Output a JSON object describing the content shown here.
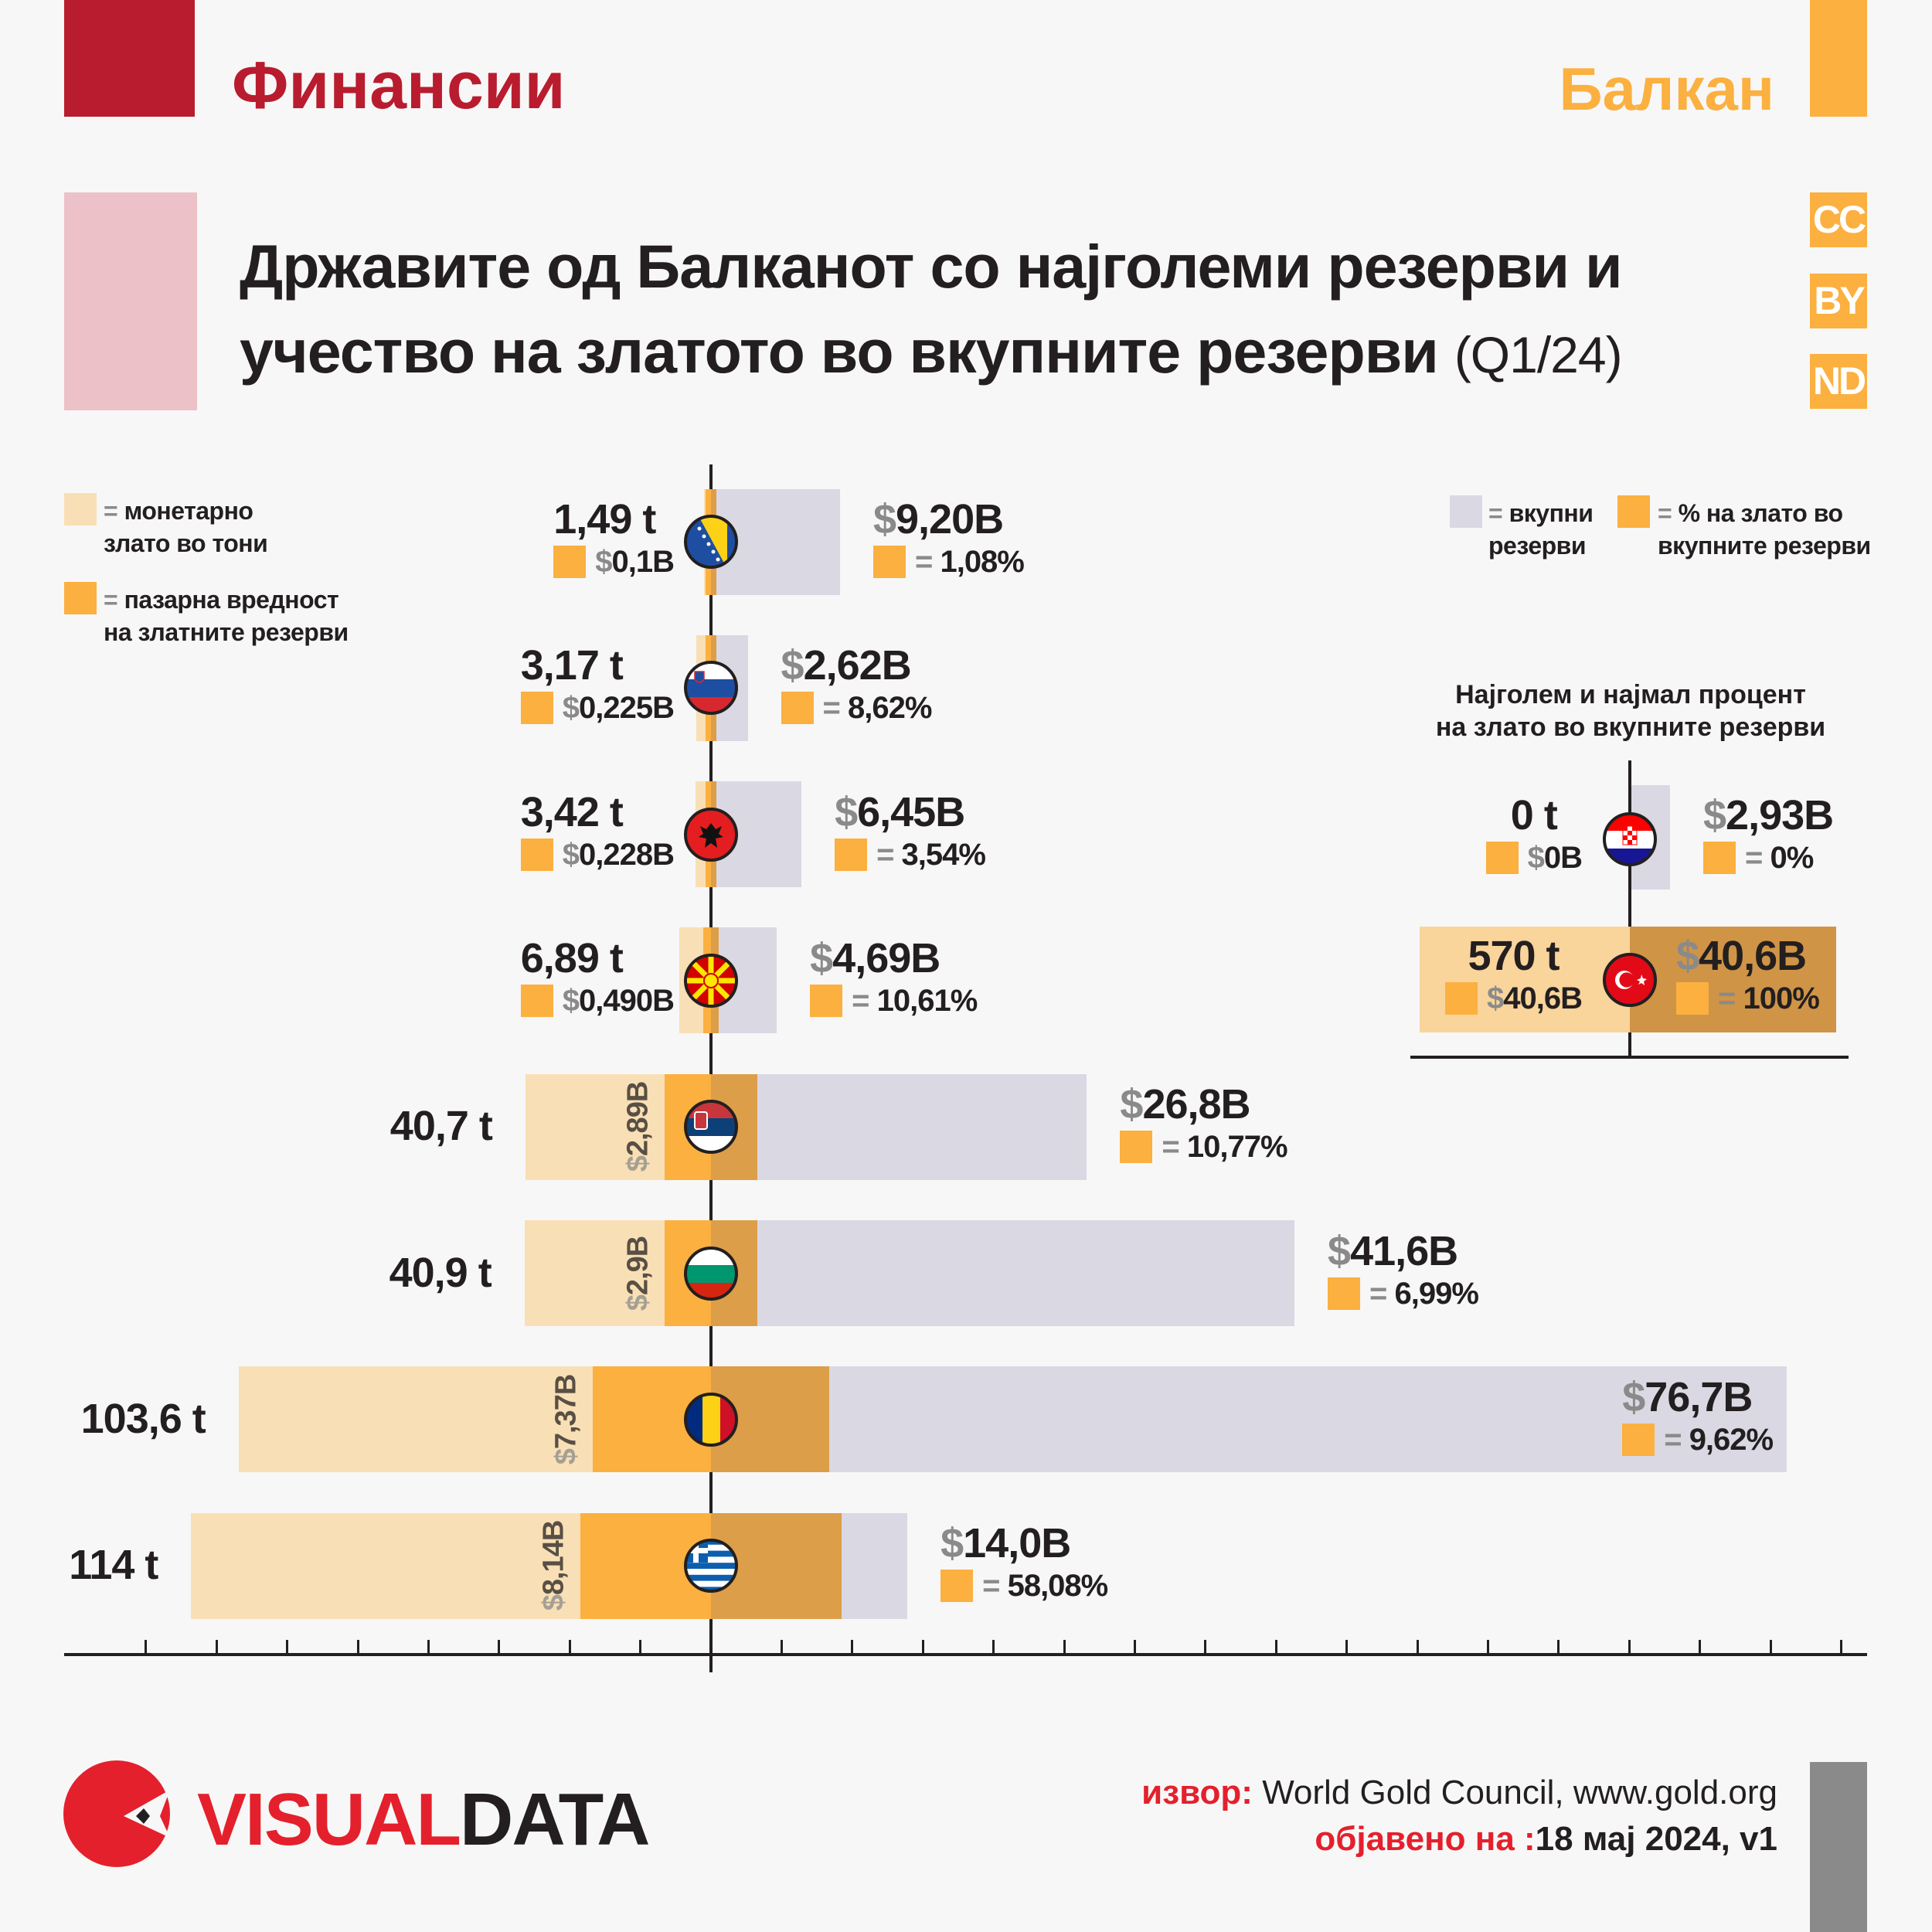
{
  "header": {
    "category": "Финансии",
    "region": "Балкан",
    "title_line1": "Државите од Балканот со најголеми резерви и",
    "title_line2": "учество на златото во вкупните резерви",
    "title_period": "(Q1/24)",
    "license": [
      "CC",
      "BY",
      "ND"
    ]
  },
  "legend": {
    "tonnes_label": "монетарно злато во тони",
    "value_label": "пазарна вредност на златните резерви",
    "reserves_label": "вкупни резерви",
    "share_label": "% на злато во вкупните резерви",
    "eq": "="
  },
  "colors": {
    "tan": "#f9dfb5",
    "orange": "#fbb040",
    "orange_dark": "#dc9e48",
    "grey": "#dad8e3",
    "red": "#b91c2e",
    "text": "#231f20"
  },
  "chart_data": {
    "type": "bar",
    "title": "Државите од Балканот со најголеми резерви и учество на златото во вкупните резерви (Q1/24)",
    "currency": "$",
    "rows": [
      {
        "country": "Bosnia and Herzegovina",
        "flag": "ba",
        "tonnes": 1.49,
        "tonnes_label": "1,49 t",
        "gold_value_b": 0.1,
        "gold_value_label": "0,1B",
        "total_b": 9.2,
        "total_label": "9,20B",
        "share_label": "1,08%"
      },
      {
        "country": "Slovenia",
        "flag": "si",
        "tonnes": 3.17,
        "tonnes_label": "3,17 t",
        "gold_value_b": 0.225,
        "gold_value_label": "0,225B",
        "total_b": 2.62,
        "total_label": "2,62B",
        "share_label": "8,62%"
      },
      {
        "country": "Albania",
        "flag": "al",
        "tonnes": 3.42,
        "tonnes_label": "3,42 t",
        "gold_value_b": 0.228,
        "gold_value_label": "0,228B",
        "total_b": 6.45,
        "total_label": "6,45B",
        "share_label": "3,54%"
      },
      {
        "country": "North Macedonia",
        "flag": "mk",
        "tonnes": 6.89,
        "tonnes_label": "6,89 t",
        "gold_value_b": 0.49,
        "gold_value_label": "0,490B",
        "total_b": 4.69,
        "total_label": "4,69B",
        "share_label": "10,61%"
      },
      {
        "country": "Serbia",
        "flag": "rs",
        "tonnes": 40.7,
        "tonnes_label": "40,7 t",
        "gold_value_b": 2.89,
        "gold_value_label": "2,89B",
        "total_b": 26.8,
        "total_label": "26,8B",
        "share_label": "10,77%"
      },
      {
        "country": "Bulgaria",
        "flag": "bg",
        "tonnes": 40.9,
        "tonnes_label": "40,9 t",
        "gold_value_b": 2.9,
        "gold_value_label": "2,9B",
        "total_b": 41.6,
        "total_label": "41,6B",
        "share_label": "6,99%"
      },
      {
        "country": "Romania",
        "flag": "ro",
        "tonnes": 103.6,
        "tonnes_label": "103,6 t",
        "gold_value_b": 7.37,
        "gold_value_label": "7,37B",
        "total_b": 76.7,
        "total_label": "76,7B",
        "share_label": "9,62%"
      },
      {
        "country": "Greece",
        "flag": "gr",
        "tonnes": 114,
        "tonnes_label": "114 t",
        "gold_value_b": 8.14,
        "gold_value_label": "8,14B",
        "total_b": 14.0,
        "total_label": "14,0B",
        "share_label": "58,08%"
      }
    ],
    "inset": {
      "title_line1": "Најголем и најмал процент",
      "title_line2": "на злато во вкупните резерви",
      "rows": [
        {
          "country": "Croatia",
          "flag": "hr",
          "tonnes": 0,
          "tonnes_label": "0 t",
          "gold_value_b": 0,
          "gold_value_label": "0B",
          "total_b": 2.93,
          "total_label": "2,93B",
          "share_label": "0%"
        },
        {
          "country": "Turkey",
          "flag": "tr",
          "tonnes": 570,
          "tonnes_label": "570 t",
          "gold_value_b": 40.6,
          "gold_value_label": "40,6B",
          "total_b": 40.6,
          "total_label": "40,6B",
          "share_label": "100%"
        }
      ]
    }
  },
  "footer": {
    "logo_a": "VISUAL",
    "logo_b": "DATA",
    "source_label": "извор:",
    "source": "World Gold Council, www.gold.org",
    "published_label": "објавено на :",
    "published": "18 мај 2024, v1"
  }
}
